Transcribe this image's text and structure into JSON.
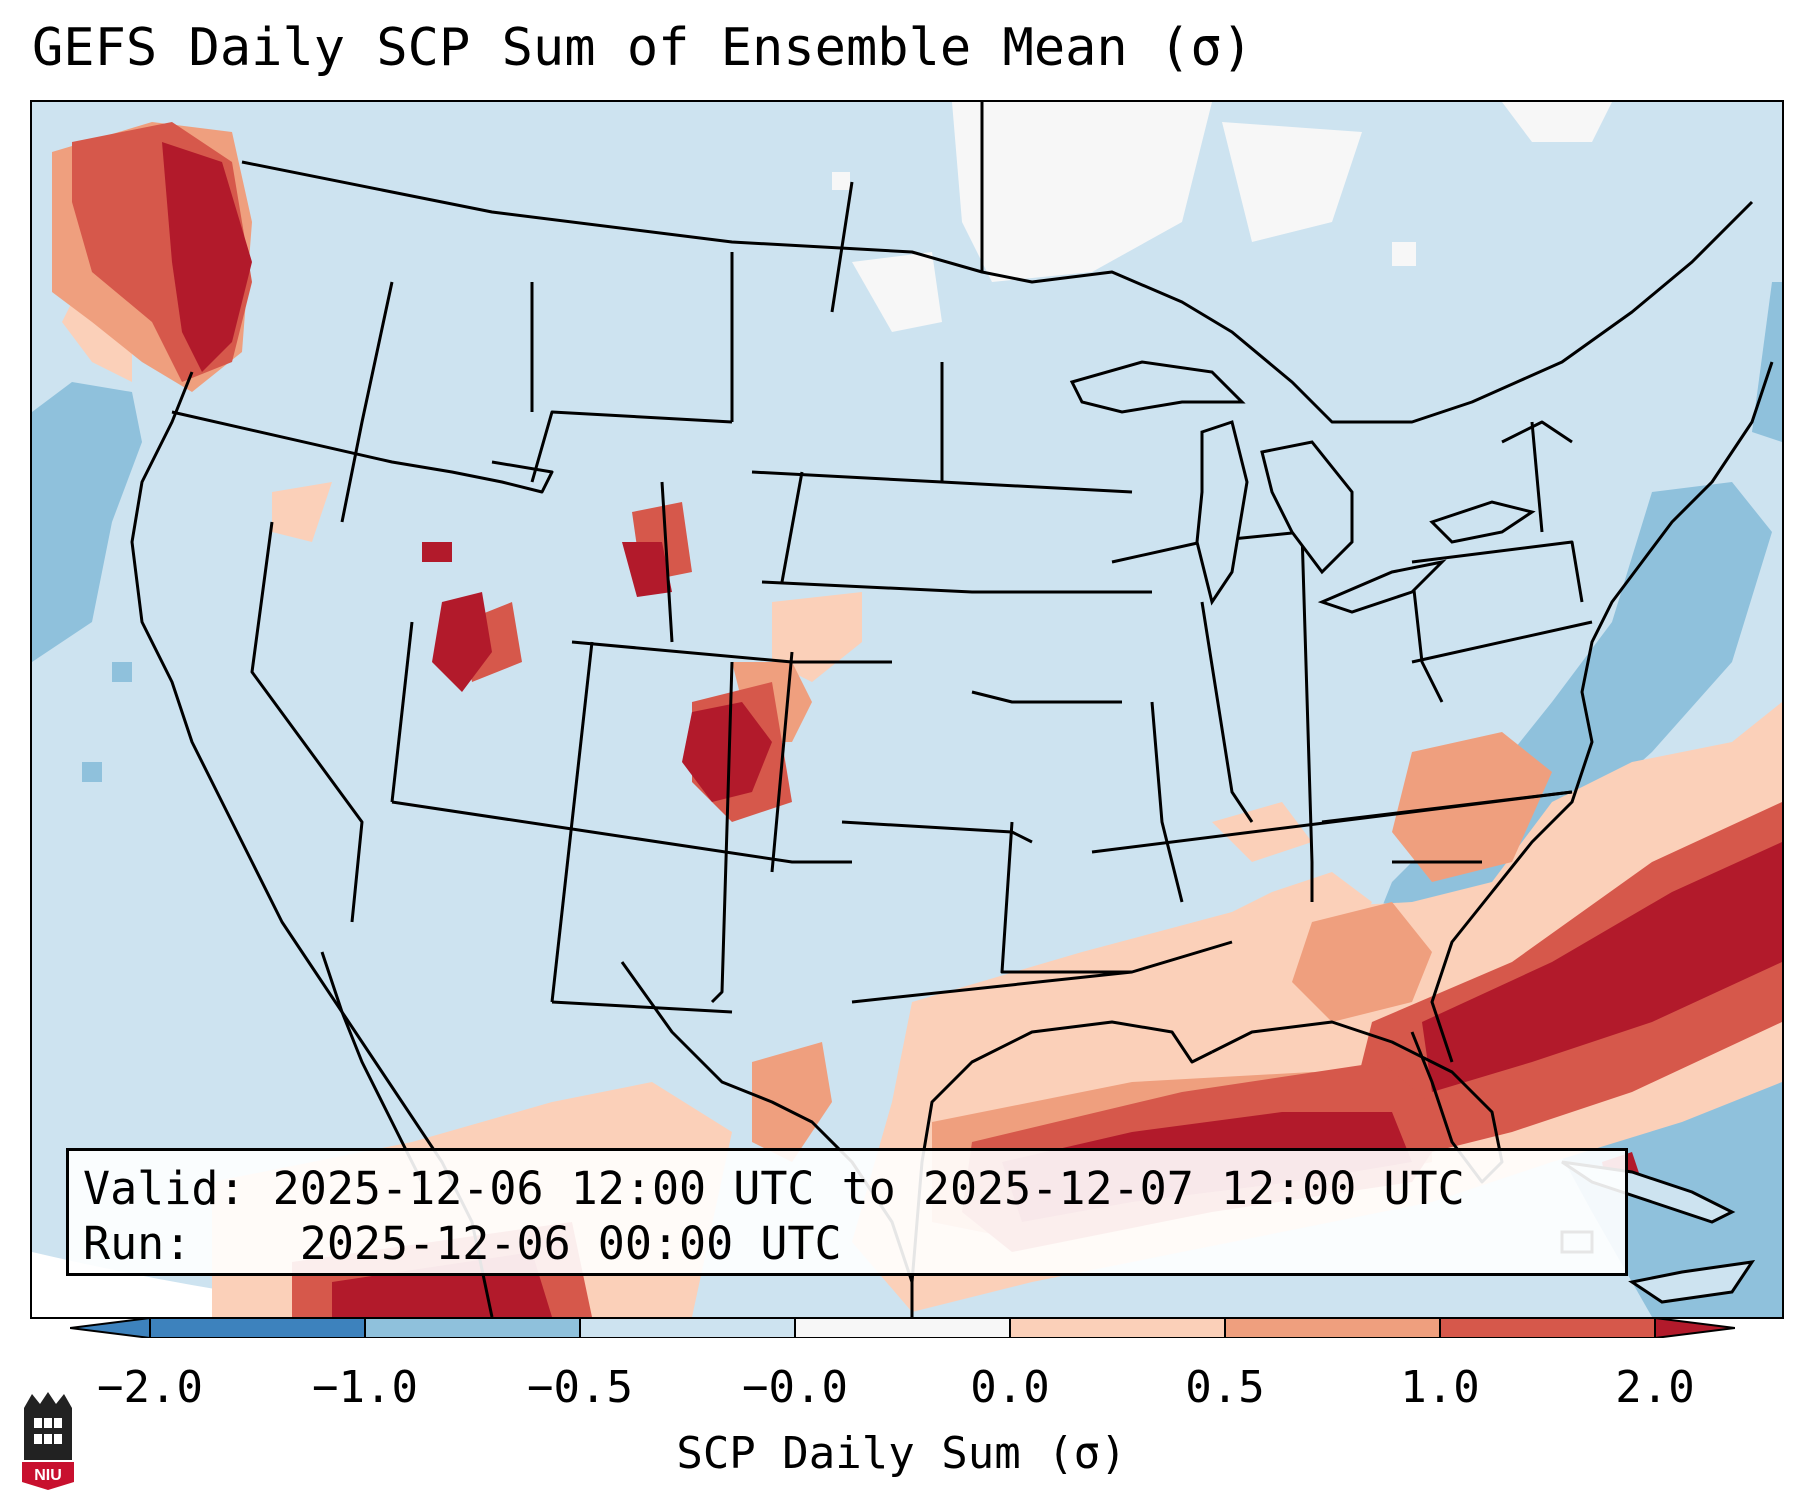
{
  "title": "GEFS Daily SCP Sum of Ensemble Mean (σ)",
  "info": {
    "valid_label": "Valid:",
    "valid_value": "2025-12-06 12:00 UTC to 2025-12-07 12:00 UTC",
    "run_label": "Run:",
    "run_value": "2025-12-06 00:00 UTC"
  },
  "colorbar": {
    "label": "SCP Daily Sum (σ)",
    "ticks": [
      "−2.0",
      "−1.0",
      "−0.5",
      "−0.0",
      "0.0",
      "0.5",
      "1.0",
      "2.0"
    ],
    "colors": {
      "extend_low": "#3d82bd",
      "lt_neg1": "#3d82bd",
      "neg1_neg05": "#8fc1dc",
      "neg05_neg0": "#cde3f0",
      "zero": "#f7f7f7",
      "z_05": "#fbd0b9",
      "05_1": "#ef9f7e",
      "1_2": "#d6584b",
      "extend_high": "#b21a2b"
    }
  },
  "colors": {
    "light_blue": "#cde3f0",
    "mid_blue": "#8fc1dc",
    "white": "#f7f7f7",
    "pale_red": "#fbd0b9",
    "light_red": "#ef9f7e",
    "red": "#d6584b",
    "dark_red": "#b21a2b",
    "boundary": "#000000"
  },
  "logo": {
    "text": "NIU",
    "color": "#c8102e"
  }
}
